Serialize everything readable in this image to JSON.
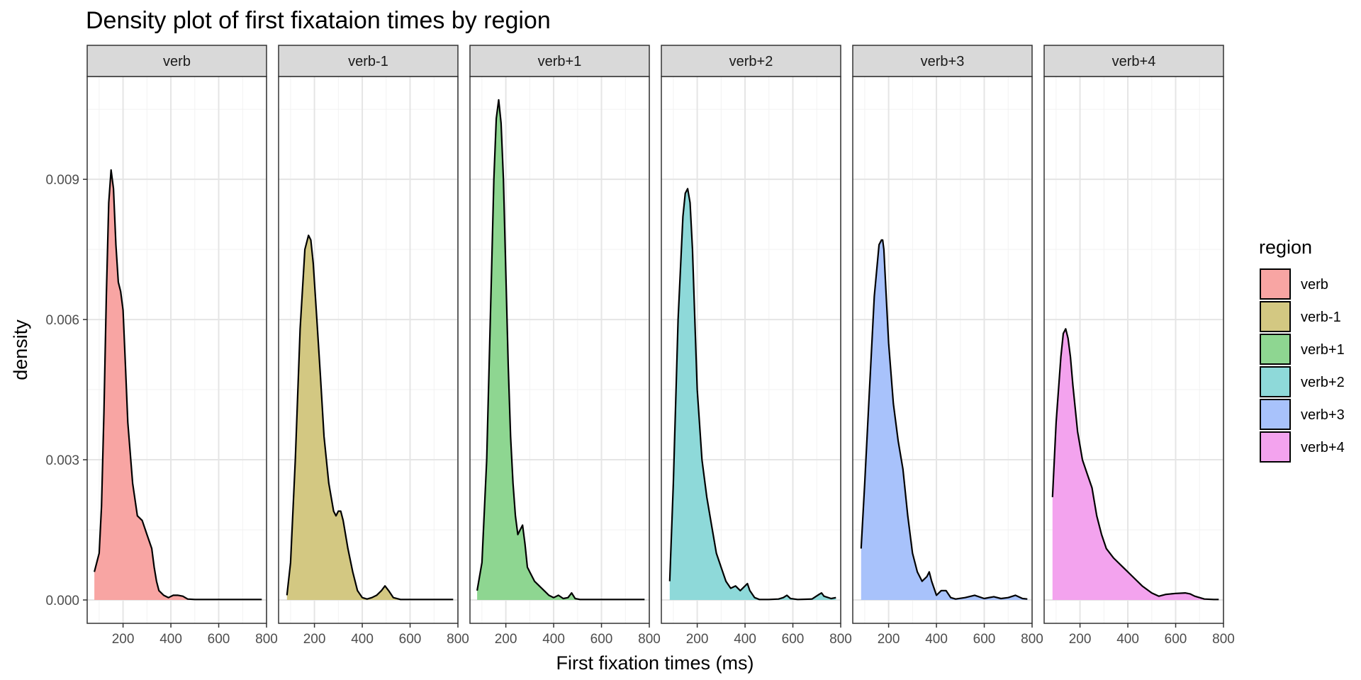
{
  "chart_data": {
    "type": "area",
    "title": "Density plot of first fixataion times by region",
    "xlabel": "First fixation times (ms)",
    "ylabel": "density",
    "xlim": [
      50,
      800
    ],
    "ylim": [
      -0.0005,
      0.0112
    ],
    "x_ticks": [
      200,
      400,
      600,
      800
    ],
    "x_tick_labels": [
      "200",
      "400",
      "600",
      "800"
    ],
    "y_ticks": [
      0,
      0.003,
      0.006,
      0.009
    ],
    "y_tick_labels": [
      "0.000",
      "0.003",
      "0.006",
      "0.009"
    ],
    "grid": true,
    "legend": {
      "title": "region",
      "position": "right",
      "entries": [
        "verb",
        "verb-1",
        "verb+1",
        "verb+2",
        "verb+3",
        "verb+4"
      ]
    },
    "colors": [
      "#F8A5A3",
      "#D3C882",
      "#8ED691",
      "#8ED9D9",
      "#A8C2FB",
      "#F3A3EE"
    ],
    "panels": [
      {
        "name": "verb",
        "x": [
          80,
          90,
          100,
          110,
          120,
          130,
          140,
          150,
          160,
          165,
          170,
          180,
          190,
          200,
          210,
          220,
          240,
          260,
          280,
          300,
          320,
          330,
          340,
          350,
          370,
          390,
          410,
          430,
          450,
          470,
          500,
          550,
          600,
          650,
          700,
          780
        ],
        "y": [
          0.0006,
          0.0008,
          0.001,
          0.002,
          0.004,
          0.0065,
          0.0085,
          0.0092,
          0.0088,
          0.0082,
          0.0076,
          0.0068,
          0.0066,
          0.0062,
          0.005,
          0.0038,
          0.0025,
          0.0018,
          0.0017,
          0.0014,
          0.0011,
          0.0007,
          0.0004,
          0.0002,
          0.0001,
          5e-05,
          0.0001,
          0.0001,
          8e-05,
          2e-05,
          1e-05,
          1e-05,
          1e-05,
          1e-05,
          1e-05,
          1e-05
        ]
      },
      {
        "name": "verb-1",
        "x": [
          85,
          100,
          120,
          140,
          160,
          175,
          185,
          195,
          210,
          225,
          240,
          260,
          280,
          290,
          300,
          310,
          320,
          340,
          360,
          380,
          400,
          420,
          440,
          460,
          480,
          495,
          510,
          530,
          560,
          600,
          700,
          780
        ],
        "y": [
          0.0001,
          0.0008,
          0.003,
          0.0058,
          0.0075,
          0.0078,
          0.0077,
          0.0072,
          0.006,
          0.0048,
          0.0035,
          0.0025,
          0.0019,
          0.0018,
          0.0019,
          0.0019,
          0.0017,
          0.0011,
          0.0006,
          0.0002,
          5e-05,
          2e-05,
          5e-05,
          0.0001,
          0.0002,
          0.0003,
          0.0002,
          5e-05,
          1e-05,
          1e-05,
          1e-05,
          1e-05
        ]
      },
      {
        "name": "verb+1",
        "x": [
          80,
          100,
          120,
          140,
          150,
          160,
          170,
          180,
          190,
          200,
          210,
          220,
          230,
          240,
          250,
          260,
          270,
          280,
          290,
          300,
          320,
          340,
          360,
          380,
          400,
          420,
          440,
          460,
          475,
          490,
          510,
          550,
          600,
          650,
          700,
          780
        ],
        "y": [
          0.0002,
          0.0008,
          0.003,
          0.007,
          0.009,
          0.0103,
          0.0107,
          0.0102,
          0.009,
          0.007,
          0.005,
          0.0035,
          0.0025,
          0.0018,
          0.0014,
          0.0015,
          0.0016,
          0.0012,
          0.0007,
          0.0006,
          0.0004,
          0.0003,
          0.0002,
          0.0001,
          5e-05,
          0.0001,
          3e-05,
          5e-05,
          0.00015,
          3e-05,
          1e-05,
          1e-05,
          1e-05,
          1e-05,
          1e-05,
          1e-05
        ]
      },
      {
        "name": "verb+2",
        "x": [
          85,
          100,
          120,
          140,
          150,
          160,
          170,
          180,
          190,
          200,
          220,
          240,
          260,
          280,
          300,
          320,
          340,
          360,
          380,
          400,
          410,
          420,
          440,
          460,
          500,
          540,
          560,
          575,
          590,
          620,
          680,
          710,
          720,
          730,
          760,
          780
        ],
        "y": [
          0.0004,
          0.0025,
          0.006,
          0.0082,
          0.0087,
          0.0088,
          0.0085,
          0.0075,
          0.006,
          0.0045,
          0.003,
          0.0022,
          0.0016,
          0.001,
          0.0007,
          0.0004,
          0.00025,
          0.0003,
          0.0002,
          0.0003,
          0.00035,
          0.0002,
          5e-05,
          1e-05,
          1e-05,
          2e-05,
          5e-05,
          0.0001,
          3e-05,
          1e-05,
          2e-05,
          0.00012,
          0.00015,
          8e-05,
          3e-05,
          5e-05
        ]
      },
      {
        "name": "verb+3",
        "x": [
          85,
          100,
          120,
          140,
          160,
          170,
          175,
          180,
          190,
          200,
          220,
          240,
          260,
          280,
          300,
          320,
          340,
          360,
          370,
          380,
          400,
          420,
          440,
          460,
          480,
          520,
          560,
          600,
          640,
          670,
          700,
          730,
          760,
          780
        ],
        "y": [
          0.0011,
          0.0025,
          0.0045,
          0.0065,
          0.0076,
          0.0077,
          0.0077,
          0.0075,
          0.0065,
          0.0055,
          0.0042,
          0.0034,
          0.0028,
          0.0018,
          0.001,
          0.0006,
          0.0004,
          0.0005,
          0.0006,
          0.0004,
          0.0001,
          0.0002,
          0.0002,
          5e-05,
          2e-05,
          5e-05,
          0.0001,
          3e-05,
          7e-05,
          3e-05,
          5e-05,
          0.0001,
          3e-05,
          2e-05
        ]
      },
      {
        "name": "verb+4",
        "x": [
          85,
          100,
          120,
          130,
          140,
          150,
          160,
          170,
          190,
          210,
          230,
          250,
          270,
          290,
          310,
          340,
          380,
          420,
          460,
          500,
          530,
          560,
          600,
          640,
          660,
          680,
          700,
          720,
          760,
          780
        ],
        "y": [
          0.0022,
          0.0038,
          0.0052,
          0.0057,
          0.0058,
          0.0056,
          0.0052,
          0.0046,
          0.0036,
          0.003,
          0.0027,
          0.0024,
          0.0018,
          0.0014,
          0.0011,
          0.0009,
          0.0007,
          0.0005,
          0.0003,
          0.00015,
          8e-05,
          0.00012,
          0.00014,
          0.00015,
          0.00013,
          8e-05,
          5e-05,
          2e-05,
          1e-05,
          1e-05
        ]
      }
    ]
  }
}
